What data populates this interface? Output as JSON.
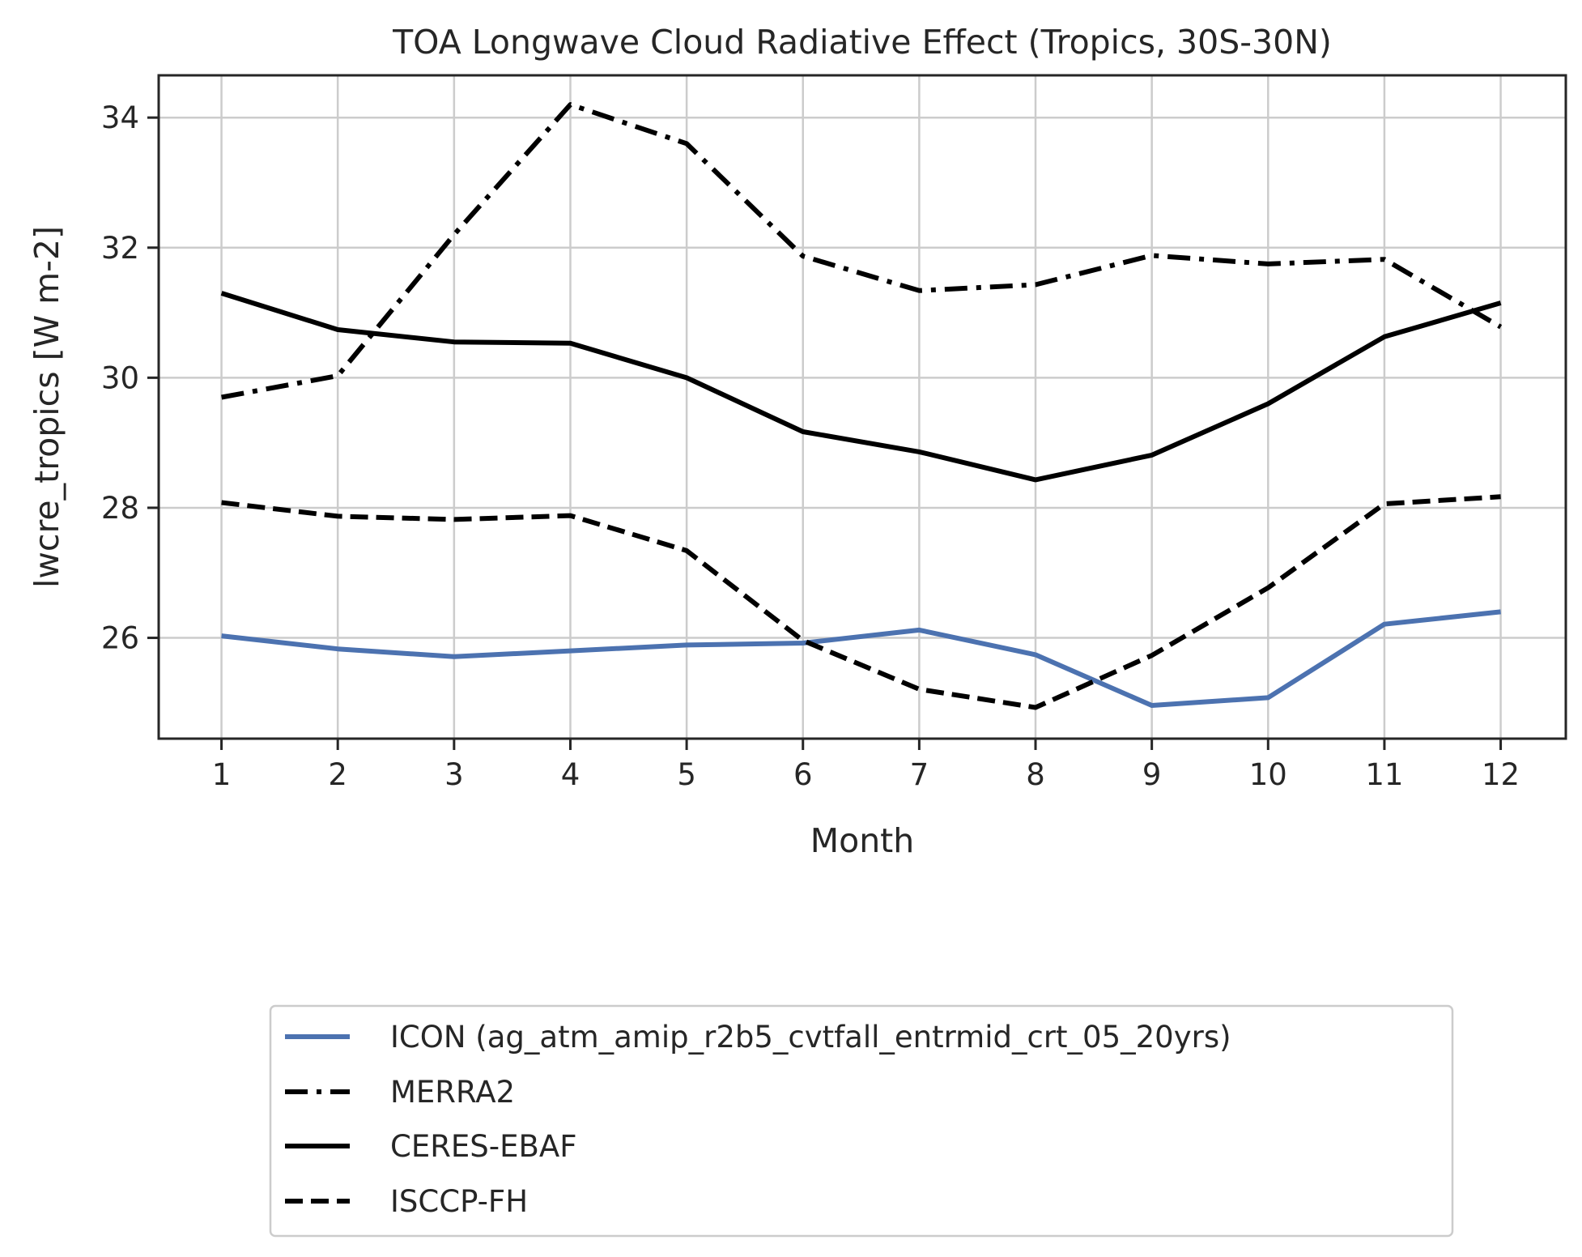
{
  "chart_data": {
    "type": "line",
    "title": "TOA Longwave Cloud Radiative Effect (Tropics, 30S-30N)",
    "xlabel": "Month",
    "ylabel": "lwcre_tropics [W m-2]",
    "x": [
      1,
      2,
      3,
      4,
      5,
      6,
      7,
      8,
      9,
      10,
      11,
      12
    ],
    "xlim": [
      0.46,
      12.56
    ],
    "ylim": [
      24.45,
      34.65
    ],
    "xticks": [
      "1",
      "2",
      "3",
      "4",
      "5",
      "6",
      "7",
      "8",
      "9",
      "10",
      "11",
      "12"
    ],
    "yticks": [
      26,
      28,
      30,
      32,
      34
    ],
    "grid": true,
    "legend_position": "below",
    "series": [
      {
        "name": "ICON (ag_atm_amip_r2b5_cvtfall_entrmid_crt_05_20yrs)",
        "color": "#4c72b0",
        "style": "solid",
        "values": [
          26.03,
          25.83,
          25.71,
          25.8,
          25.89,
          25.92,
          26.12,
          25.74,
          24.96,
          25.08,
          26.21,
          26.4
        ]
      },
      {
        "name": "MERRA2",
        "color": "#000000",
        "style": "dashdot",
        "values": [
          29.7,
          30.03,
          32.2,
          34.2,
          33.6,
          31.87,
          31.34,
          31.43,
          31.88,
          31.75,
          31.82,
          30.78
        ]
      },
      {
        "name": "CERES-EBAF",
        "color": "#000000",
        "style": "solid",
        "values": [
          31.3,
          30.74,
          30.55,
          30.53,
          30.0,
          29.17,
          28.86,
          28.43,
          28.81,
          29.6,
          30.63,
          31.15
        ]
      },
      {
        "name": "ISCCP-FH",
        "color": "#000000",
        "style": "dashed",
        "values": [
          28.08,
          27.87,
          27.82,
          27.88,
          27.34,
          25.96,
          25.21,
          24.93,
          25.73,
          26.77,
          28.06,
          28.17
        ]
      }
    ]
  }
}
